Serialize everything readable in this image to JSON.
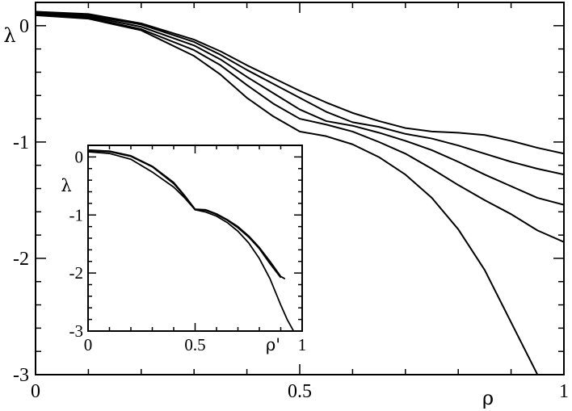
{
  "chart_data": [
    {
      "type": "line",
      "role": "main",
      "xlabel": "ρ",
      "ylabel": "λ",
      "xlim": [
        0,
        1
      ],
      "ylim": [
        -3,
        0.2
      ],
      "xticks": [
        0,
        0.5,
        1
      ],
      "xtick_labels": [
        "0",
        "0.5",
        "1"
      ],
      "yticks": [
        0,
        -1,
        -2,
        -3
      ],
      "ytick_labels": [
        "0",
        "-1",
        "-2",
        "-3"
      ],
      "grid": false,
      "series": [
        {
          "x": [
            0,
            0.1,
            0.2,
            0.3,
            0.35,
            0.4,
            0.45,
            0.5,
            0.55,
            0.6,
            0.65,
            0.7,
            0.75,
            0.8,
            0.85,
            0.9,
            0.95,
            1.0
          ],
          "y": [
            0.12,
            0.1,
            0.02,
            -0.12,
            -0.22,
            -0.34,
            -0.45,
            -0.56,
            -0.66,
            -0.75,
            -0.82,
            -0.88,
            -0.91,
            -0.92,
            -0.94,
            -0.99,
            -1.05,
            -1.1
          ]
        },
        {
          "x": [
            0,
            0.1,
            0.2,
            0.3,
            0.35,
            0.4,
            0.45,
            0.5,
            0.55,
            0.6,
            0.65,
            0.7,
            0.75,
            0.8,
            0.85,
            0.9,
            0.95,
            1.0
          ],
          "y": [
            0.12,
            0.09,
            0.01,
            -0.14,
            -0.25,
            -0.38,
            -0.5,
            -0.62,
            -0.74,
            -0.83,
            -0.87,
            -0.93,
            -0.97,
            -1.03,
            -1.1,
            -1.17,
            -1.23,
            -1.28
          ]
        },
        {
          "x": [
            0,
            0.1,
            0.2,
            0.3,
            0.35,
            0.4,
            0.45,
            0.5,
            0.55,
            0.6,
            0.65,
            0.7,
            0.75,
            0.8,
            0.85,
            0.9,
            0.95,
            1.0
          ],
          "y": [
            0.11,
            0.08,
            -0.01,
            -0.17,
            -0.29,
            -0.44,
            -0.58,
            -0.72,
            -0.82,
            -0.86,
            -0.92,
            -0.99,
            -1.07,
            -1.17,
            -1.28,
            -1.38,
            -1.48,
            -1.54
          ]
        },
        {
          "x": [
            0,
            0.1,
            0.2,
            0.3,
            0.35,
            0.4,
            0.45,
            0.5,
            0.55,
            0.6,
            0.65,
            0.7,
            0.75,
            0.8,
            0.85,
            0.9,
            0.95,
            1.0
          ],
          "y": [
            0.1,
            0.07,
            -0.03,
            -0.21,
            -0.34,
            -0.51,
            -0.67,
            -0.8,
            -0.85,
            -0.91,
            -1.0,
            -1.1,
            -1.23,
            -1.37,
            -1.5,
            -1.62,
            -1.76,
            -1.86
          ]
        },
        {
          "x": [
            0,
            0.1,
            0.2,
            0.3,
            0.35,
            0.4,
            0.45,
            0.5,
            0.55,
            0.6,
            0.65,
            0.7,
            0.75,
            0.8,
            0.85,
            0.9,
            0.95,
            0.975
          ],
          "y": [
            0.09,
            0.06,
            -0.04,
            -0.26,
            -0.42,
            -0.62,
            -0.78,
            -0.91,
            -0.95,
            -1.02,
            -1.13,
            -1.28,
            -1.48,
            -1.75,
            -2.1,
            -2.55,
            -3.0,
            -3.0
          ]
        }
      ]
    },
    {
      "type": "line",
      "role": "inset",
      "xlabel": "ρ'",
      "ylabel": "λ",
      "xlim": [
        0,
        1
      ],
      "ylim": [
        -3,
        0.2
      ],
      "xticks": [
        0,
        0.5,
        1
      ],
      "xtick_labels": [
        "0",
        "0.5",
        "1"
      ],
      "yticks": [
        0,
        -1,
        -2,
        -3
      ],
      "ytick_labels": [
        "0",
        "-1",
        "-2",
        "-3"
      ],
      "grid": false,
      "series": [
        {
          "x": [
            0,
            0.1,
            0.2,
            0.3,
            0.4,
            0.45,
            0.5,
            0.55,
            0.6,
            0.65,
            0.7,
            0.75,
            0.8,
            0.85,
            0.9,
            0.92
          ],
          "y": [
            0.12,
            0.1,
            0.02,
            -0.16,
            -0.44,
            -0.66,
            -0.9,
            -0.91,
            -0.98,
            -1.08,
            -1.2,
            -1.36,
            -1.56,
            -1.8,
            -2.06,
            -2.1
          ]
        },
        {
          "x": [
            0,
            0.1,
            0.2,
            0.3,
            0.4,
            0.45,
            0.5,
            0.55,
            0.6,
            0.65,
            0.7,
            0.75,
            0.8,
            0.85,
            0.9
          ],
          "y": [
            0.11,
            0.09,
            0.01,
            -0.17,
            -0.46,
            -0.67,
            -0.91,
            -0.92,
            -0.99,
            -1.09,
            -1.22,
            -1.38,
            -1.58,
            -1.84,
            -2.08
          ]
        },
        {
          "x": [
            0,
            0.1,
            0.2,
            0.3,
            0.4,
            0.45,
            0.5,
            0.55,
            0.6,
            0.65,
            0.7,
            0.75,
            0.8,
            0.85,
            0.9,
            0.93,
            0.96,
            0.975
          ],
          "y": [
            0.09,
            0.06,
            -0.04,
            -0.26,
            -0.52,
            -0.7,
            -0.91,
            -0.95,
            -1.02,
            -1.13,
            -1.28,
            -1.48,
            -1.75,
            -2.1,
            -2.55,
            -2.8,
            -3.0,
            -3.0
          ]
        }
      ]
    }
  ]
}
